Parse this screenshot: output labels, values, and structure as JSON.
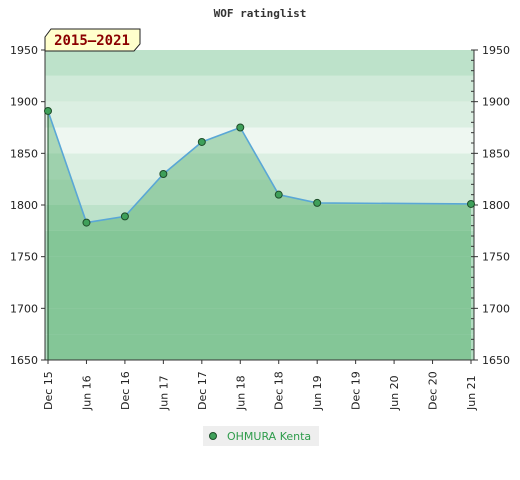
{
  "chart_data": {
    "type": "area",
    "title": "WOF ratinglist",
    "period_label": "2015–2021",
    "x_categories": [
      "Dec 15",
      "Jun 16",
      "Dec 16",
      "Jun 17",
      "Dec 17",
      "Jun 18",
      "Dec 18",
      "Jun 19",
      "Dec 19",
      "Jun 20",
      "Dec 20",
      "Jun 21"
    ],
    "y_ticks": [
      1650,
      1700,
      1750,
      1800,
      1850,
      1900,
      1950
    ],
    "ylim": [
      1650,
      1950
    ],
    "series": [
      {
        "name": "OHMURA Kenta",
        "points": [
          {
            "x": "Dec 15",
            "y": 1891
          },
          {
            "x": "Jun 16",
            "y": 1783
          },
          {
            "x": "Dec 16",
            "y": 1789
          },
          {
            "x": "Jun 17",
            "y": 1830
          },
          {
            "x": "Dec 17",
            "y": 1861
          },
          {
            "x": "Jun 18",
            "y": 1875
          },
          {
            "x": "Dec 18",
            "y": 1810
          },
          {
            "x": "Jun 19",
            "y": 1802
          },
          {
            "x": "Jun 21",
            "y": 1801
          }
        ]
      }
    ],
    "legend_position": "bottom-center",
    "colors": {
      "line": "#5aa7d6",
      "marker_fill": "#3fa05a",
      "area_fill": "#2e9c4b",
      "band_dark": "#b2ddc1",
      "band_light": "#dff0e5",
      "badge_bg": "#ffffcc",
      "legend_text": "#2e9c4b"
    }
  }
}
